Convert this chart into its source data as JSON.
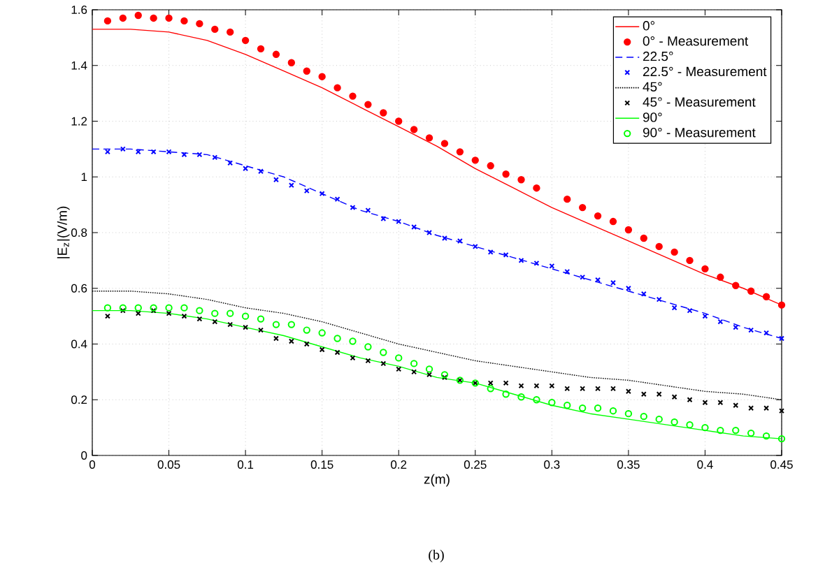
{
  "chart_data": {
    "type": "line",
    "xlabel": "z(m)",
    "ylabel": "|E$_{z}$|(V/m)",
    "annotations": [
      "(b)"
    ],
    "xlim": [
      0,
      0.45
    ],
    "xticks": [
      0,
      0.05,
      0.1,
      0.15,
      0.2,
      0.25,
      0.3,
      0.35,
      0.4,
      0.45
    ],
    "ylim": [
      0,
      1.6
    ],
    "yticks": [
      0,
      0.2,
      0.4,
      0.6,
      0.8,
      1,
      1.2,
      1.4,
      1.6
    ],
    "grid": true,
    "legend": "top right",
    "series": [
      {
        "name": "0°",
        "color": "#ff0000",
        "line_style": "solid",
        "marker": "none",
        "x": [
          0,
          0.025,
          0.05,
          0.075,
          0.1,
          0.125,
          0.15,
          0.175,
          0.2,
          0.225,
          0.25,
          0.275,
          0.3,
          0.325,
          0.35,
          0.375,
          0.4,
          0.425,
          0.45
        ],
        "values": [
          1.53,
          1.53,
          1.52,
          1.49,
          1.44,
          1.38,
          1.32,
          1.25,
          1.18,
          1.11,
          1.03,
          0.96,
          0.89,
          0.83,
          0.77,
          0.71,
          0.65,
          0.6,
          0.54
        ]
      },
      {
        "name": "0° - Measurement",
        "type": "scatter",
        "color": "#ff0000",
        "marker": "circle",
        "x": [
          0.01,
          0.02,
          0.03,
          0.04,
          0.05,
          0.06,
          0.07,
          0.08,
          0.09,
          0.1,
          0.11,
          0.12,
          0.13,
          0.14,
          0.15,
          0.16,
          0.17,
          0.18,
          0.19,
          0.2,
          0.21,
          0.22,
          0.23,
          0.24,
          0.25,
          0.26,
          0.27,
          0.28,
          0.29,
          0.3,
          0.31,
          0.32,
          0.33,
          0.34,
          0.35,
          0.36,
          0.37,
          0.38,
          0.39,
          0.4,
          0.41,
          0.42,
          0.43,
          0.44,
          0.45
        ],
        "values": [
          1.56,
          1.57,
          1.58,
          1.57,
          1.57,
          1.56,
          1.55,
          1.53,
          1.52,
          1.49,
          1.46,
          1.44,
          1.41,
          1.38,
          1.36,
          1.32,
          1.29,
          1.26,
          1.23,
          1.2,
          1.17,
          1.14,
          1.12,
          1.09,
          1.06,
          1.04,
          1.01,
          0.99,
          0.96,
          null,
          0.92,
          0.89,
          0.86,
          0.84,
          0.81,
          0.78,
          0.75,
          0.73,
          0.7,
          0.67,
          0.64,
          0.61,
          0.59,
          0.57,
          0.54
        ]
      },
      {
        "name": "22.5°",
        "color": "#0000ff",
        "line_style": "dashed",
        "marker": "none",
        "x": [
          0,
          0.025,
          0.05,
          0.075,
          0.1,
          0.125,
          0.15,
          0.175,
          0.2,
          0.225,
          0.25,
          0.275,
          0.3,
          0.325,
          0.35,
          0.375,
          0.4,
          0.425,
          0.45
        ],
        "values": [
          1.1,
          1.1,
          1.09,
          1.08,
          1.04,
          1.0,
          0.94,
          0.88,
          0.84,
          0.79,
          0.75,
          0.71,
          0.67,
          0.63,
          0.59,
          0.55,
          0.51,
          0.46,
          0.42
        ]
      },
      {
        "name": "22.5° - Measurement",
        "type": "scatter",
        "color": "#0000ff",
        "marker": "cross",
        "x": [
          0.01,
          0.02,
          0.03,
          0.04,
          0.05,
          0.06,
          0.07,
          0.08,
          0.09,
          0.1,
          0.11,
          0.12,
          0.13,
          0.14,
          0.15,
          0.16,
          0.17,
          0.18,
          0.19,
          0.2,
          0.21,
          0.22,
          0.23,
          0.24,
          0.25,
          0.26,
          0.27,
          0.28,
          0.29,
          0.3,
          0.31,
          0.32,
          0.33,
          0.34,
          0.35,
          0.36,
          0.37,
          0.38,
          0.39,
          0.4,
          0.41,
          0.42,
          0.43,
          0.44,
          0.45
        ],
        "values": [
          1.09,
          1.1,
          1.09,
          1.09,
          1.09,
          1.08,
          1.08,
          1.07,
          1.05,
          1.03,
          1.02,
          0.99,
          0.97,
          0.95,
          0.94,
          0.92,
          0.89,
          0.88,
          0.85,
          0.84,
          0.82,
          0.8,
          0.78,
          0.77,
          0.75,
          0.73,
          0.72,
          0.7,
          0.69,
          0.68,
          0.66,
          0.64,
          0.63,
          0.62,
          0.6,
          0.58,
          0.56,
          0.53,
          0.52,
          0.5,
          0.48,
          0.46,
          0.45,
          0.44,
          0.42
        ]
      },
      {
        "name": "45°",
        "color": "#000000",
        "line_style": "dotted",
        "marker": "none",
        "x": [
          0,
          0.025,
          0.05,
          0.075,
          0.1,
          0.125,
          0.15,
          0.175,
          0.2,
          0.225,
          0.25,
          0.275,
          0.3,
          0.325,
          0.35,
          0.375,
          0.4,
          0.425,
          0.45
        ],
        "values": [
          0.59,
          0.59,
          0.58,
          0.56,
          0.53,
          0.51,
          0.48,
          0.44,
          0.4,
          0.37,
          0.34,
          0.32,
          0.3,
          0.28,
          0.27,
          0.25,
          0.23,
          0.22,
          0.2
        ]
      },
      {
        "name": "45° - Measurement",
        "type": "scatter",
        "color": "#000000",
        "marker": "cross",
        "x": [
          0.01,
          0.02,
          0.03,
          0.04,
          0.05,
          0.06,
          0.07,
          0.08,
          0.09,
          0.1,
          0.11,
          0.12,
          0.13,
          0.14,
          0.15,
          0.16,
          0.17,
          0.18,
          0.19,
          0.2,
          0.21,
          0.22,
          0.23,
          0.24,
          0.25,
          0.26,
          0.27,
          0.28,
          0.29,
          0.3,
          0.31,
          0.32,
          0.33,
          0.34,
          0.35,
          0.36,
          0.37,
          0.38,
          0.39,
          0.4,
          0.41,
          0.42,
          0.43,
          0.44,
          0.45
        ],
        "values": [
          0.5,
          0.52,
          0.51,
          0.52,
          0.51,
          0.5,
          0.49,
          0.48,
          0.47,
          0.46,
          0.45,
          0.42,
          0.41,
          0.4,
          0.38,
          0.37,
          0.35,
          0.34,
          0.33,
          0.31,
          0.3,
          0.29,
          0.28,
          0.27,
          0.26,
          0.26,
          0.26,
          0.25,
          0.25,
          0.25,
          0.24,
          0.24,
          0.24,
          0.24,
          0.23,
          0.22,
          0.22,
          0.21,
          0.2,
          0.19,
          0.19,
          0.18,
          0.17,
          0.17,
          0.16
        ]
      },
      {
        "name": "90°",
        "color": "#00ff00",
        "line_style": "solid",
        "marker": "none",
        "x": [
          0,
          0.025,
          0.05,
          0.075,
          0.1,
          0.125,
          0.15,
          0.175,
          0.2,
          0.225,
          0.25,
          0.275,
          0.3,
          0.325,
          0.35,
          0.375,
          0.4,
          0.425,
          0.45
        ],
        "values": [
          0.52,
          0.52,
          0.51,
          0.49,
          0.46,
          0.43,
          0.39,
          0.35,
          0.32,
          0.28,
          0.26,
          0.22,
          0.18,
          0.15,
          0.13,
          0.11,
          0.09,
          0.07,
          0.06
        ]
      },
      {
        "name": "90° - Measurement",
        "type": "scatter",
        "color": "#00ff00",
        "marker": "open circle",
        "x": [
          0.01,
          0.02,
          0.03,
          0.04,
          0.05,
          0.06,
          0.07,
          0.08,
          0.09,
          0.1,
          0.11,
          0.12,
          0.13,
          0.14,
          0.15,
          0.16,
          0.17,
          0.18,
          0.19,
          0.2,
          0.21,
          0.22,
          0.23,
          0.24,
          0.25,
          0.26,
          0.27,
          0.28,
          0.29,
          0.3,
          0.31,
          0.32,
          0.33,
          0.34,
          0.35,
          0.36,
          0.37,
          0.38,
          0.39,
          0.4,
          0.41,
          0.42,
          0.43,
          0.44,
          0.45
        ],
        "values": [
          0.53,
          0.53,
          0.53,
          0.53,
          0.53,
          0.53,
          0.52,
          0.51,
          0.51,
          0.5,
          0.49,
          0.47,
          0.47,
          0.45,
          0.44,
          0.42,
          0.41,
          0.39,
          0.37,
          0.35,
          0.33,
          0.31,
          0.29,
          0.27,
          0.26,
          0.24,
          0.22,
          0.21,
          0.2,
          0.19,
          0.18,
          0.17,
          0.17,
          0.16,
          0.15,
          0.14,
          0.13,
          0.12,
          0.11,
          0.1,
          0.09,
          0.09,
          0.08,
          0.07,
          0.06
        ]
      }
    ]
  }
}
